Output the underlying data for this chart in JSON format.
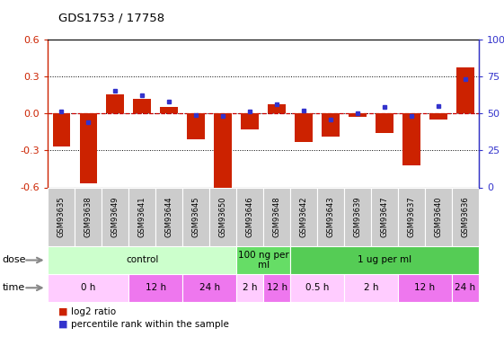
{
  "title": "GDS1753 / 17758",
  "samples": [
    "GSM93635",
    "GSM93638",
    "GSM93649",
    "GSM93641",
    "GSM93644",
    "GSM93645",
    "GSM93650",
    "GSM93646",
    "GSM93648",
    "GSM93642",
    "GSM93643",
    "GSM93639",
    "GSM93647",
    "GSM93637",
    "GSM93640",
    "GSM93636"
  ],
  "log2_ratio": [
    -0.27,
    -0.57,
    0.15,
    0.12,
    0.05,
    -0.21,
    -0.62,
    -0.13,
    0.07,
    -0.23,
    -0.19,
    -0.03,
    -0.16,
    -0.42,
    -0.05,
    0.37
  ],
  "percentile": [
    51,
    44,
    65,
    62,
    58,
    49,
    48,
    51,
    56,
    52,
    46,
    50,
    54,
    48,
    55,
    73
  ],
  "ylim_left": [
    -0.6,
    0.6
  ],
  "ylim_right": [
    0,
    100
  ],
  "yticks_left": [
    -0.6,
    -0.3,
    0.0,
    0.3,
    0.6
  ],
  "yticks_right": [
    0,
    25,
    50,
    75,
    100
  ],
  "bar_color": "#cc2200",
  "dot_color": "#3333cc",
  "bg_color": "#ffffff",
  "dose_row": {
    "groups": [
      {
        "label": "control",
        "start": 0,
        "end": 7,
        "color": "#ccffcc"
      },
      {
        "label": "100 ng per\nml",
        "start": 7,
        "end": 9,
        "color": "#66dd66"
      },
      {
        "label": "1 ug per ml",
        "start": 9,
        "end": 16,
        "color": "#55cc55"
      }
    ]
  },
  "time_row": {
    "groups": [
      {
        "label": "0 h",
        "start": 0,
        "end": 3,
        "color": "#ffccff"
      },
      {
        "label": "12 h",
        "start": 3,
        "end": 5,
        "color": "#ee77ee"
      },
      {
        "label": "24 h",
        "start": 5,
        "end": 7,
        "color": "#ee77ee"
      },
      {
        "label": "2 h",
        "start": 7,
        "end": 8,
        "color": "#ffccff"
      },
      {
        "label": "12 h",
        "start": 8,
        "end": 9,
        "color": "#ee77ee"
      },
      {
        "label": "0.5 h",
        "start": 9,
        "end": 11,
        "color": "#ffccff"
      },
      {
        "label": "2 h",
        "start": 11,
        "end": 13,
        "color": "#ffccff"
      },
      {
        "label": "12 h",
        "start": 13,
        "end": 15,
        "color": "#ee77ee"
      },
      {
        "label": "24 h",
        "start": 15,
        "end": 16,
        "color": "#ee77ee"
      }
    ]
  },
  "sample_cell_color": "#cccccc",
  "legend_items": [
    {
      "label": "log2 ratio",
      "color": "#cc2200"
    },
    {
      "label": "percentile rank within the sample",
      "color": "#3333cc"
    }
  ]
}
